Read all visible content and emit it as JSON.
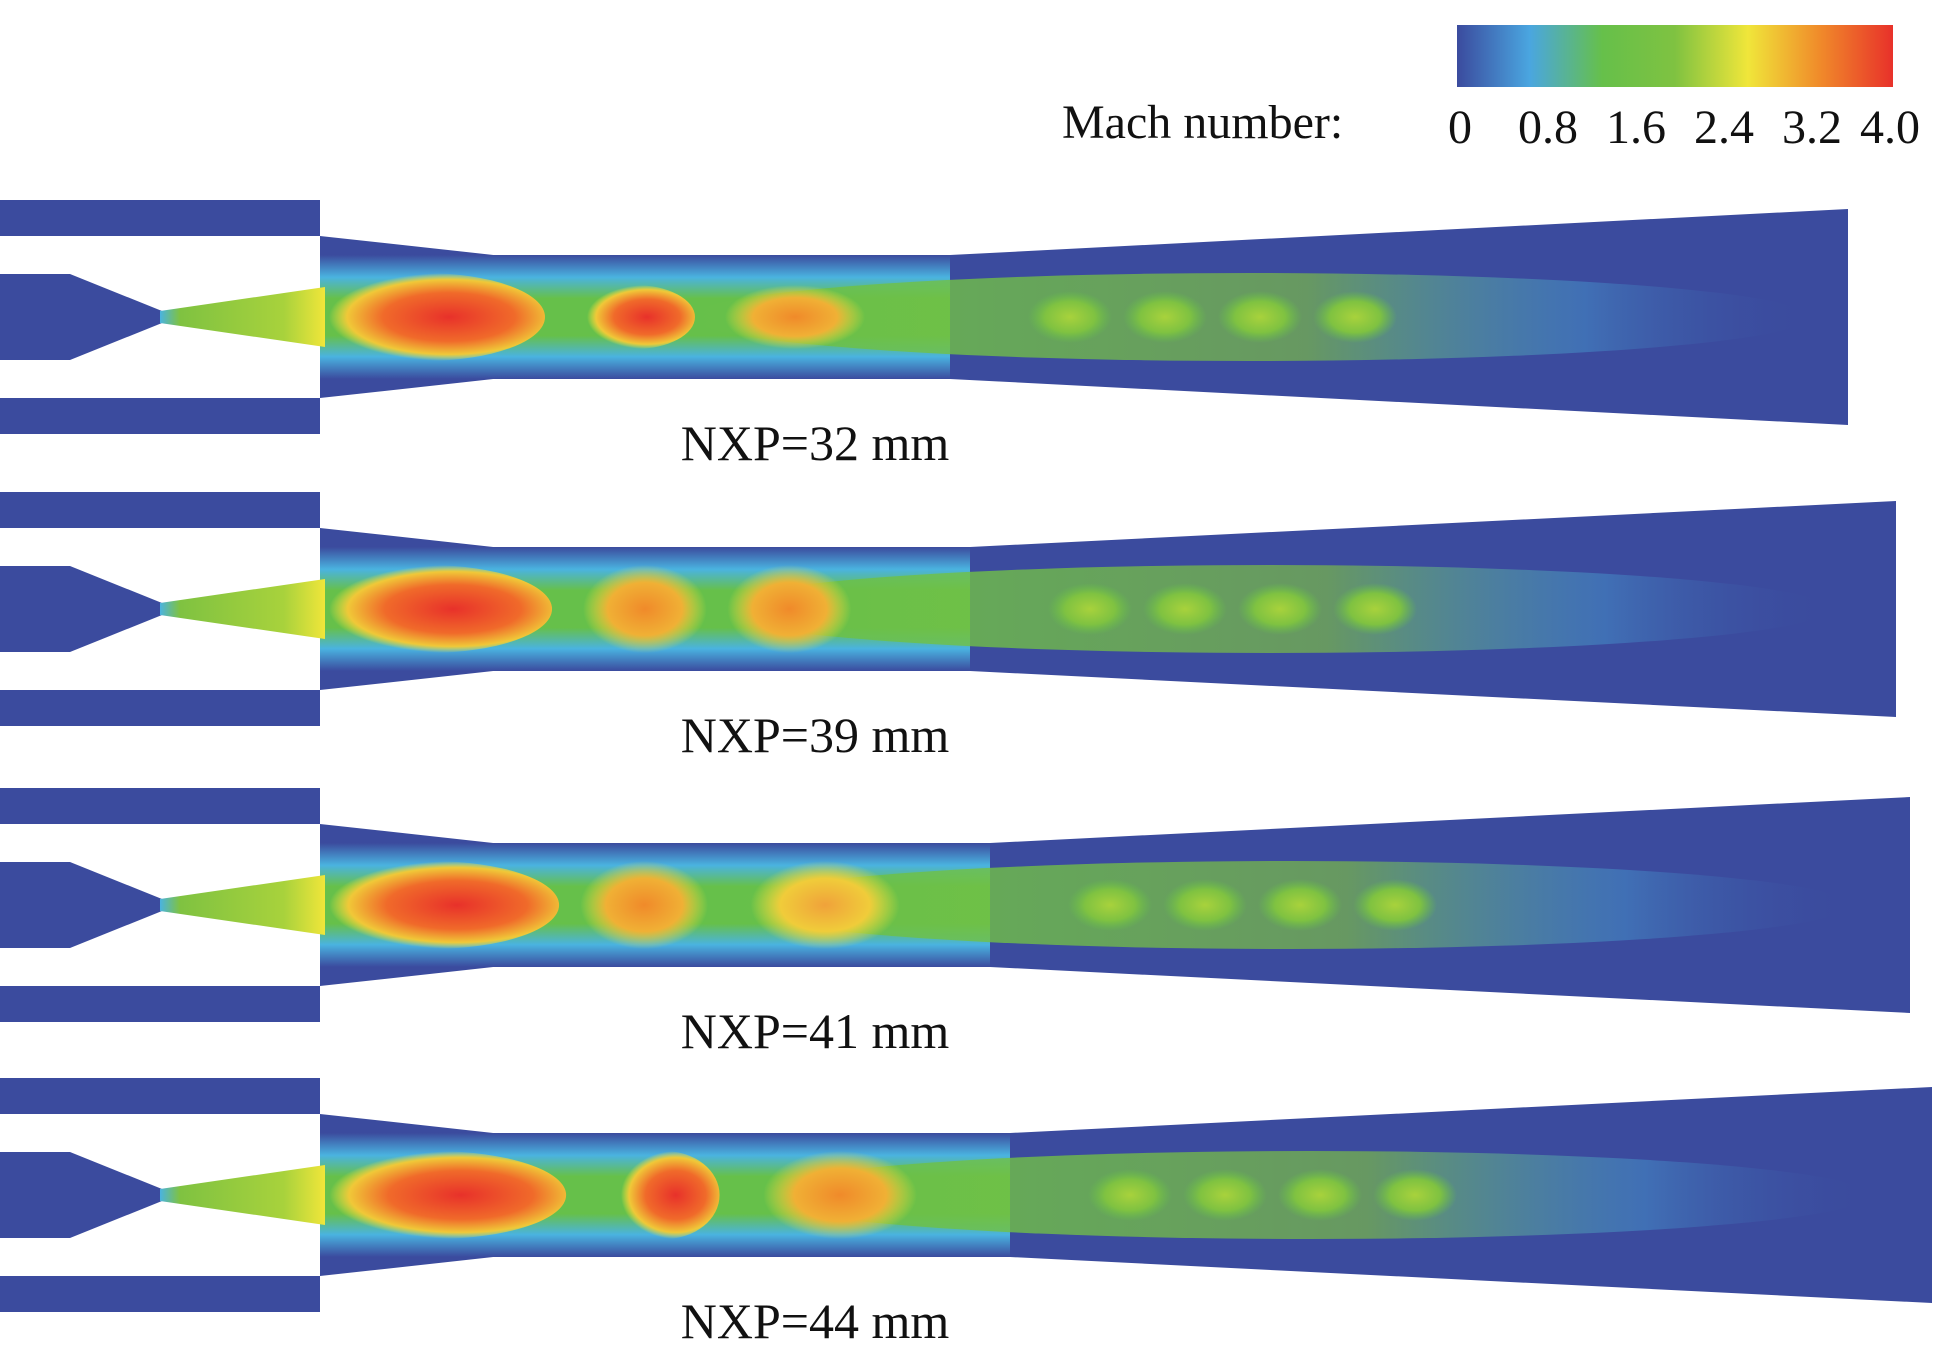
{
  "colorbar": {
    "label": "Mach number:",
    "ticks": [
      "0",
      "0.8",
      "1.6",
      "2.4",
      "3.2",
      "4.0"
    ],
    "stops": [
      "#3b4b9e",
      "#4aa6e0",
      "#66c04a",
      "#7fc241",
      "#f0e63a",
      "#f08a2a",
      "#e8312a"
    ]
  },
  "panels": [
    {
      "label": "NXP=32 mm",
      "cores": [
        {
          "cx": 0.1,
          "rx": 0.12,
          "color": "#e8312a"
        },
        {
          "cx": 0.31,
          "rx": 0.06,
          "color": "#e8312a"
        },
        {
          "cx": 0.47,
          "rx": 0.07,
          "color": "#f08a2a"
        }
      ]
    },
    {
      "label": "NXP=39 mm",
      "cores": [
        {
          "cx": 0.1,
          "rx": 0.12,
          "color": "#e8312a"
        },
        {
          "cx": 0.31,
          "rx": 0.06,
          "color": "#f08a2a"
        },
        {
          "cx": 0.45,
          "rx": 0.06,
          "color": "#f08a2a"
        }
      ]
    },
    {
      "label": "NXP=41 mm",
      "cores": [
        {
          "cx": 0.1,
          "rx": 0.12,
          "color": "#e8312a"
        },
        {
          "cx": 0.3,
          "rx": 0.06,
          "color": "#f08a2a"
        },
        {
          "cx": 0.47,
          "rx": 0.07,
          "color": "#f0a23a"
        }
      ]
    },
    {
      "label": "NXP=44 mm",
      "cores": [
        {
          "cx": 0.1,
          "rx": 0.12,
          "color": "#e8312a"
        },
        {
          "cx": 0.31,
          "rx": 0.05,
          "color": "#e8312a"
        },
        {
          "cx": 0.47,
          "rx": 0.07,
          "color": "#f08a2a"
        }
      ]
    }
  ]
}
